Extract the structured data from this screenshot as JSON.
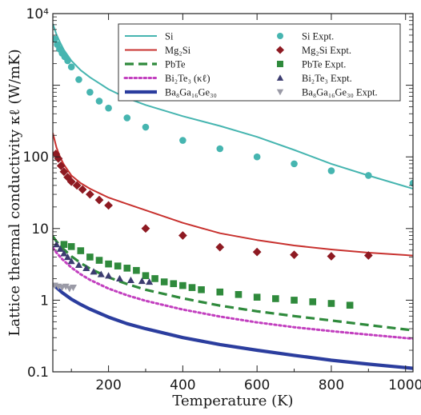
{
  "chart_data": {
    "type": "scatter",
    "title": "",
    "xlabel": "Temperature (K)",
    "ylabel": "Lattice thermal conductivity κℓ (W/mK)",
    "xlim": [
      50,
      1020
    ],
    "ylim": [
      0.1,
      10000
    ],
    "yscale": "log",
    "grid": false,
    "legend_position": "top-right",
    "x_ticks": [
      200,
      400,
      600,
      800,
      1000
    ],
    "x_tick_labels": [
      "200",
      "400",
      "600",
      "800",
      "1000"
    ],
    "y_ticks": [
      0.1,
      1,
      10,
      100,
      1000,
      10000
    ],
    "y_tick_labels": [
      "0.1",
      "1",
      "10",
      "100",
      "",
      "10⁴"
    ],
    "series": [
      {
        "name": "Si",
        "kind": "line",
        "color": "#46b5b0",
        "style": "solid",
        "x": [
          50,
          60,
          70,
          80,
          100,
          125,
          150,
          200,
          250,
          300,
          400,
          500,
          600,
          700,
          800,
          900,
          1020
        ],
        "y": [
          7200,
          5100,
          3900,
          3100,
          2200,
          1620,
          1290,
          880,
          660,
          530,
          370,
          270,
          190,
          125,
          80,
          55,
          36
        ]
      },
      {
        "name": "Mg₂Si",
        "kind": "line",
        "color": "#c8322f",
        "style": "solid",
        "x": [
          50,
          60,
          70,
          80,
          100,
          125,
          150,
          200,
          250,
          300,
          400,
          500,
          600,
          700,
          800,
          900,
          1020
        ],
        "y": [
          215,
          135,
          98,
          78,
          55,
          43,
          36,
          27,
          22,
          18,
          12,
          8.6,
          6.9,
          5.8,
          5.1,
          4.6,
          4.2
        ]
      },
      {
        "name": "PbTe",
        "kind": "line",
        "color": "#2f8a3c",
        "style": "dashed",
        "x": [
          50,
          60,
          75,
          100,
          125,
          150,
          200,
          250,
          300,
          400,
          500,
          600,
          700,
          800,
          900,
          1020
        ],
        "y": [
          7.8,
          6.6,
          5.4,
          4.1,
          3.3,
          2.75,
          2.08,
          1.68,
          1.4,
          1.06,
          0.84,
          0.7,
          0.6,
          0.52,
          0.45,
          0.38
        ]
      },
      {
        "name": "Bi₂Te₃ (κℓ)",
        "kind": "line",
        "color": "#c23fbf",
        "style": "dotted",
        "x": [
          50,
          60,
          75,
          100,
          125,
          150,
          200,
          250,
          300,
          400,
          500,
          600,
          700,
          800,
          900,
          1020
        ],
        "y": [
          5.4,
          4.6,
          3.75,
          2.85,
          2.3,
          1.92,
          1.45,
          1.17,
          0.98,
          0.74,
          0.59,
          0.49,
          0.42,
          0.37,
          0.33,
          0.29
        ]
      },
      {
        "name": "Ba₈Ga₁₆Ge₃₀",
        "kind": "line",
        "color": "#2b3d9e",
        "style": "solid",
        "x": [
          50,
          60,
          75,
          100,
          125,
          150,
          200,
          250,
          300,
          400,
          500,
          600,
          700,
          800,
          900,
          1020
        ],
        "y": [
          1.7,
          1.5,
          1.28,
          1.03,
          0.87,
          0.75,
          0.58,
          0.47,
          0.4,
          0.3,
          0.24,
          0.2,
          0.17,
          0.145,
          0.128,
          0.112
        ]
      },
      {
        "name": "Si Expt.",
        "kind": "points",
        "marker": "circle",
        "color": "#46b5b0",
        "x": [
          55,
          62,
          68,
          75,
          82,
          90,
          100,
          120,
          150,
          175,
          200,
          250,
          300,
          400,
          500,
          600,
          700,
          800,
          900,
          1020
        ],
        "y": [
          4400,
          3700,
          3200,
          2800,
          2500,
          2200,
          1800,
          1200,
          800,
          600,
          480,
          350,
          260,
          170,
          130,
          100,
          80,
          64,
          55,
          43
        ]
      },
      {
        "name": "Mg₂Si Expt.",
        "kind": "points",
        "marker": "diamond",
        "color": "#8e1a22",
        "x": [
          58,
          65,
          72,
          80,
          90,
          100,
          115,
          130,
          150,
          175,
          200,
          300,
          400,
          500,
          600,
          700,
          800,
          900
        ],
        "y": [
          110,
          95,
          75,
          62,
          52,
          45,
          40,
          35,
          30,
          25,
          21,
          10,
          8,
          5.5,
          4.7,
          4.3,
          4.1,
          4.2
        ]
      },
      {
        "name": "PbTe Expt.",
        "kind": "points",
        "marker": "square",
        "color": "#2f8a3c",
        "x": [
          80,
          100,
          125,
          150,
          175,
          200,
          225,
          250,
          275,
          300,
          325,
          350,
          375,
          400,
          425,
          450,
          500,
          550,
          600,
          650,
          700,
          750,
          800,
          850
        ],
        "y": [
          6.0,
          5.6,
          4.9,
          4.0,
          3.6,
          3.2,
          3.0,
          2.8,
          2.6,
          2.2,
          2.0,
          1.8,
          1.7,
          1.6,
          1.5,
          1.4,
          1.3,
          1.2,
          1.1,
          1.05,
          1.0,
          0.95,
          0.9,
          0.85
        ]
      },
      {
        "name": "Bi₂Te₃ Expt.",
        "kind": "points",
        "marker": "triangle",
        "color": "#3c3c70",
        "x": [
          60,
          70,
          80,
          90,
          100,
          120,
          140,
          160,
          180,
          200,
          230,
          260,
          290,
          310
        ],
        "y": [
          6.0,
          5.2,
          4.5,
          4.0,
          3.5,
          3.1,
          2.8,
          2.5,
          2.3,
          2.2,
          2.0,
          1.9,
          1.85,
          1.8
        ]
      },
      {
        "name": "Ba₈Ga₁₆Ge₃₀ Expt.",
        "kind": "points",
        "marker": "triangle-down",
        "color": "#9a9aa6",
        "x": [
          55,
          65,
          75,
          85,
          95,
          105
        ],
        "y": [
          1.6,
          1.55,
          1.5,
          1.55,
          1.45,
          1.5
        ]
      }
    ]
  }
}
